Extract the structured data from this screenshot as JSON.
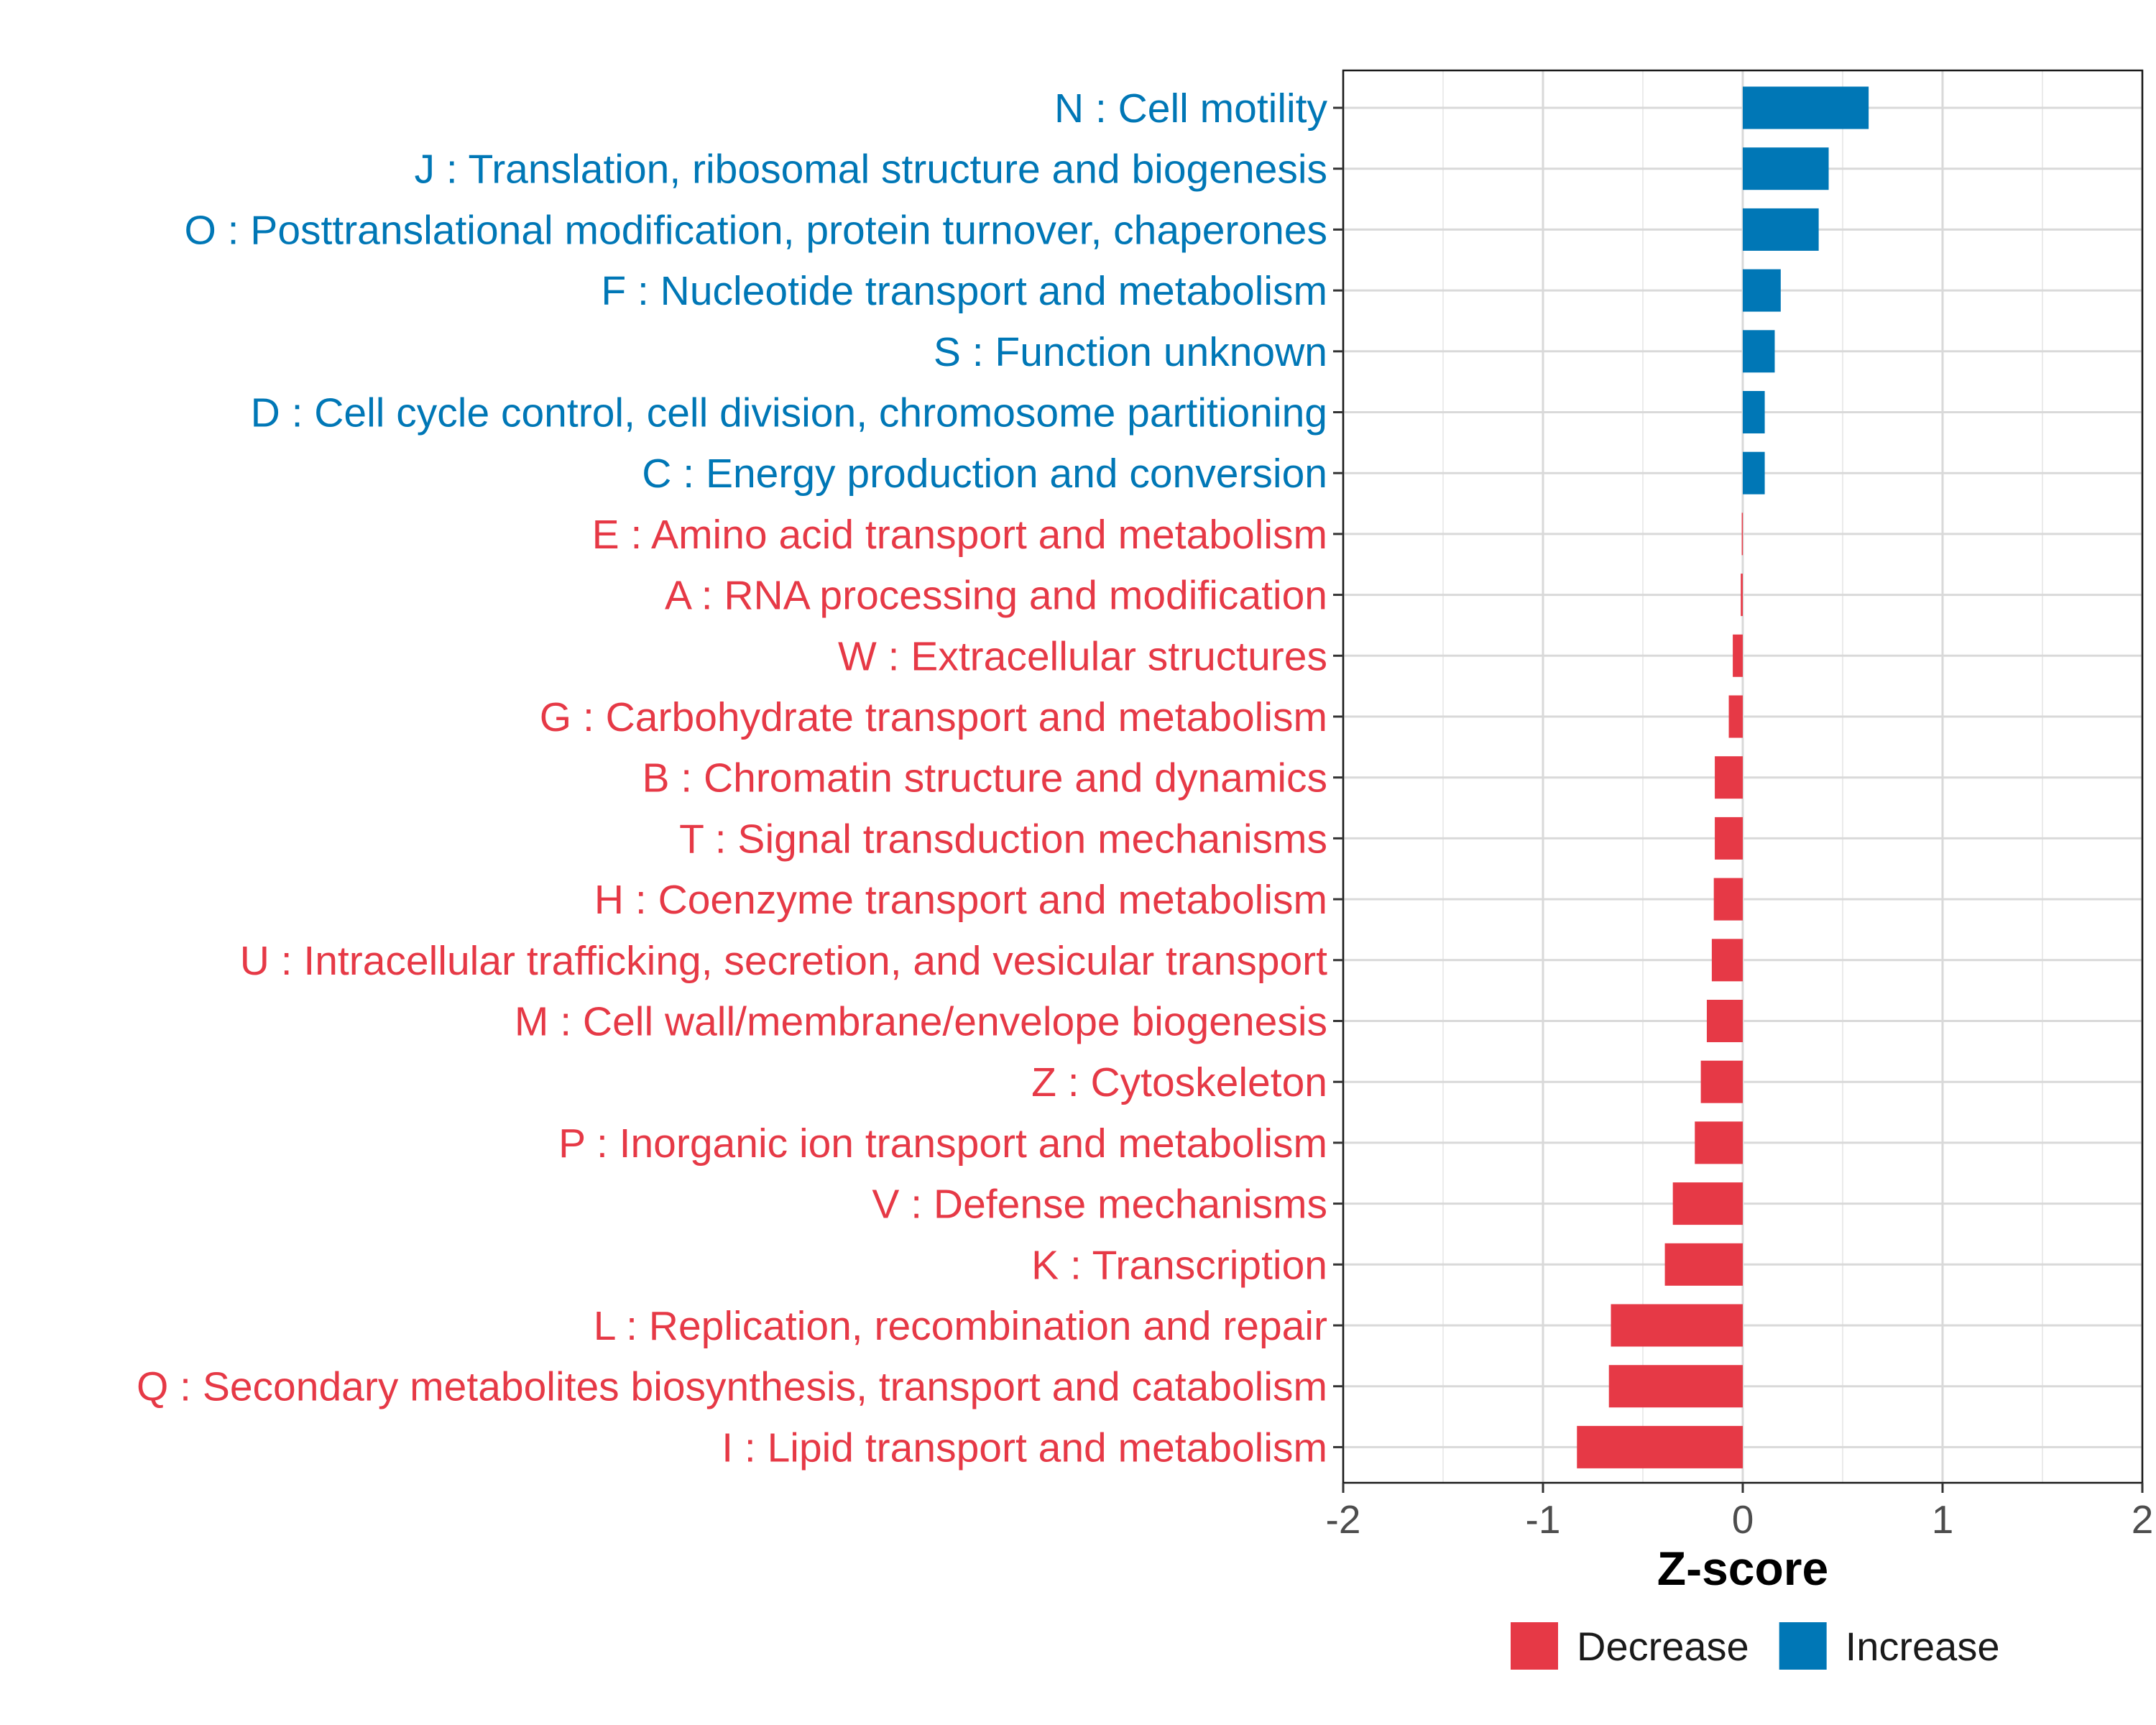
{
  "chart_data": {
    "type": "bar",
    "orientation": "horizontal",
    "title": "",
    "xlabel": "Z-score",
    "ylabel": "",
    "xlim": [
      -2,
      2
    ],
    "xticks": [
      -2,
      -1,
      0,
      1,
      2
    ],
    "tick_labels": [
      "-2",
      "-1",
      "0",
      "1",
      "2"
    ],
    "grid": true,
    "legend_position": "bottom",
    "colors": {
      "Decrease": "#E63946",
      "Increase": "#0077B6"
    },
    "legend": [
      {
        "name": "Decrease",
        "color": "#E63946"
      },
      {
        "name": "Increase",
        "color": "#0077B6"
      }
    ],
    "categories": [
      "N : Cell motility",
      "J : Translation, ribosomal structure and biogenesis",
      "O : Posttranslational modification, protein turnover, chaperones",
      "F : Nucleotide transport and metabolism",
      "S : Function unknown",
      "D : Cell cycle control, cell division, chromosome partitioning",
      "C : Energy production and conversion",
      "E : Amino acid transport and metabolism",
      "A : RNA processing and modification",
      "W : Extracellular structures",
      "G : Carbohydrate transport and metabolism",
      "B : Chromatin structure and dynamics",
      "T : Signal transduction mechanisms",
      "H : Coenzyme transport and metabolism",
      "U : Intracellular trafficking, secretion, and vesicular transport",
      "M : Cell wall/membrane/envelope biogenesis",
      "Z : Cytoskeleton",
      "P : Inorganic ion transport and metabolism",
      "V : Defense mechanisms",
      "K : Transcription",
      "L : Replication, recombination and repair",
      "Q : Secondary metabolites biosynthesis, transport and catabolism",
      "I : Lipid transport and metabolism"
    ],
    "values": [
      0.63,
      0.43,
      0.38,
      0.19,
      0.16,
      0.11,
      0.11,
      -0.005,
      -0.01,
      -0.05,
      -0.07,
      -0.14,
      -0.14,
      -0.145,
      -0.155,
      -0.18,
      -0.21,
      -0.24,
      -0.35,
      -0.39,
      -0.66,
      -0.67,
      -0.83
    ],
    "groups": [
      "Increase",
      "Increase",
      "Increase",
      "Increase",
      "Increase",
      "Increase",
      "Increase",
      "Decrease",
      "Decrease",
      "Decrease",
      "Decrease",
      "Decrease",
      "Decrease",
      "Decrease",
      "Decrease",
      "Decrease",
      "Decrease",
      "Decrease",
      "Decrease",
      "Decrease",
      "Decrease",
      "Decrease",
      "Decrease"
    ]
  }
}
